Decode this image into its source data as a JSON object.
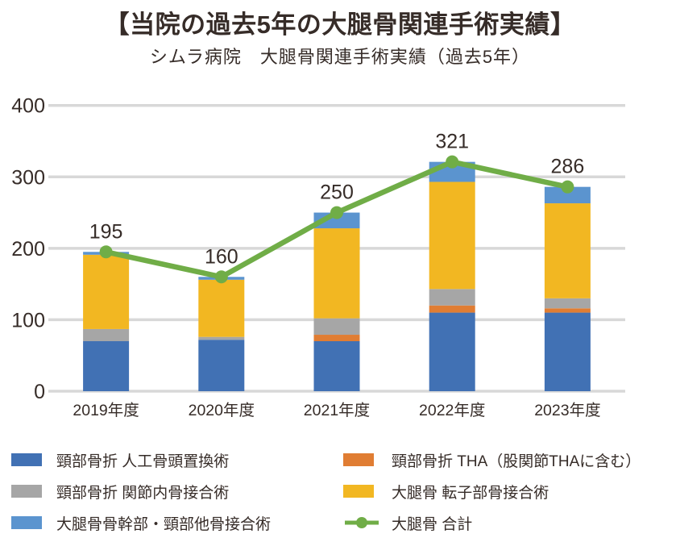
{
  "title": "【当院の過去5年の大腿骨関連手術実績】",
  "subtitle": "シムラ病院　大腿骨関連手術実績（過去5年）",
  "chart_data": {
    "type": "bar",
    "subtype": "stacked-bar-with-line",
    "title": "シムラ病院　大腿骨関連手術実績（過去5年）",
    "categories": [
      "2019年度",
      "2020年度",
      "2021年度",
      "2022年度",
      "2023年度"
    ],
    "series": [
      {
        "name": "頸部骨折 人工骨頭置換術",
        "color": "#4171b4",
        "values": [
          70,
          72,
          70,
          110,
          110
        ]
      },
      {
        "name": "頸部骨折 THA（股関節THAに含む）",
        "color": "#e07d33",
        "values": [
          0,
          0,
          9,
          10,
          6
        ]
      },
      {
        "name": "頸部骨折 関節内骨接合術",
        "color": "#a6a6a6",
        "values": [
          17,
          4,
          23,
          23,
          14
        ]
      },
      {
        "name": "大腿骨 転子部骨接合術",
        "color": "#f2b722",
        "values": [
          104,
          80,
          126,
          150,
          133
        ]
      },
      {
        "name": "大腿骨骨幹部・頸部他骨接合術",
        "color": "#5b94cf",
        "values": [
          4,
          4,
          22,
          28,
          23
        ]
      }
    ],
    "line_series": {
      "name": "大腿骨 合計",
      "color": "#70ad47",
      "values": [
        195,
        160,
        250,
        321,
        286
      ]
    },
    "data_labels": [
      195,
      160,
      250,
      321,
      286
    ],
    "yticks": [
      0,
      100,
      200,
      300,
      400
    ],
    "ylim": [
      0,
      400
    ],
    "grid": true,
    "gridline_color": "#d8d8d8",
    "tick_color": "#362c28",
    "label_color": "#362c28",
    "legend_position": "bottom"
  },
  "legend": {
    "columns": [
      {
        "items": [
          {
            "label": "頸部骨折 人工骨頭置換術",
            "swatch": "#4171b4",
            "type": "box"
          },
          {
            "label": "頸部骨折 関節内骨接合術",
            "swatch": "#a6a6a6",
            "type": "box"
          },
          {
            "label": "大腿骨骨幹部・頸部他骨接合術",
            "swatch": "#5b94cf",
            "type": "box"
          }
        ]
      },
      {
        "items": [
          {
            "label": "頸部骨折 THA（股関節THAに含む）",
            "swatch": "#e07d33",
            "type": "box"
          },
          {
            "label": "大腿骨 転子部骨接合術",
            "swatch": "#f2b722",
            "type": "box"
          },
          {
            "label": "大腿骨 合計",
            "swatch": "#70ad47",
            "type": "line"
          }
        ]
      }
    ]
  }
}
